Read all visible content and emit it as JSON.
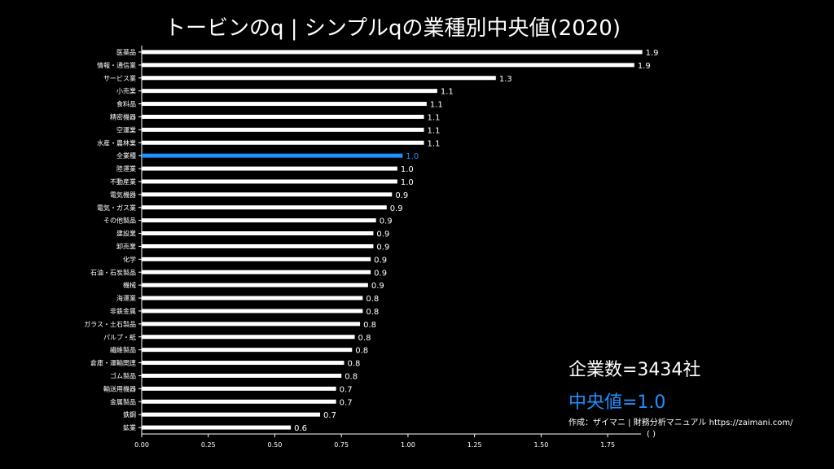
{
  "title": "トービンのq | シンプルqの業種別中央値(2020)",
  "highlight_color": "#1e90ff",
  "bar_color": "#ffffff",
  "summary": {
    "count": "企業数=3434社",
    "median": "中央値=1.0"
  },
  "source": "作成：ザイマニ | 財務分析マニュアル https://zaimani.com/",
  "source2": "(   )",
  "chart_data": {
    "type": "bar",
    "orientation": "horizontal",
    "xlim": [
      0,
      1.875
    ],
    "xticks": [
      "0.00",
      "0.25",
      "0.50",
      "0.75",
      "1.00",
      "1.25",
      "1.50",
      "1.75"
    ],
    "xtick_values": [
      0,
      0.25,
      0.5,
      0.75,
      1.0,
      1.25,
      1.5,
      1.75
    ],
    "highlight": "全業種",
    "categories": [
      "医薬品",
      "情報・通信業",
      "サービス業",
      "小売業",
      "食料品",
      "精密機器",
      "空運業",
      "水産・農林業",
      "全業種",
      "陸運業",
      "不動産業",
      "電気機器",
      "電気・ガス業",
      "その他製品",
      "建設業",
      "卸売業",
      "化学",
      "石油・石炭製品",
      "機械",
      "海運業",
      "非鉄金属",
      "ガラス・土石製品",
      "パルプ・紙",
      "繊維製品",
      "倉庫・運輸関連",
      "ゴム製品",
      "輸送用機器",
      "金属製品",
      "鉄鋼",
      "鉱業"
    ],
    "values": [
      1.88,
      1.85,
      1.33,
      1.11,
      1.07,
      1.06,
      1.06,
      1.06,
      0.98,
      0.96,
      0.96,
      0.94,
      0.92,
      0.88,
      0.87,
      0.87,
      0.86,
      0.86,
      0.85,
      0.83,
      0.83,
      0.82,
      0.8,
      0.79,
      0.76,
      0.75,
      0.73,
      0.73,
      0.67,
      0.56
    ],
    "labels": [
      "1.9",
      "1.9",
      "1.3",
      "1.1",
      "1.1",
      "1.1",
      "1.1",
      "1.1",
      "1.0",
      "1.0",
      "1.0",
      "0.9",
      "0.9",
      "0.9",
      "0.9",
      "0.9",
      "0.9",
      "0.9",
      "0.9",
      "0.8",
      "0.8",
      "0.8",
      "0.8",
      "0.8",
      "0.8",
      "0.8",
      "0.7",
      "0.7",
      "0.7",
      "0.6"
    ]
  }
}
